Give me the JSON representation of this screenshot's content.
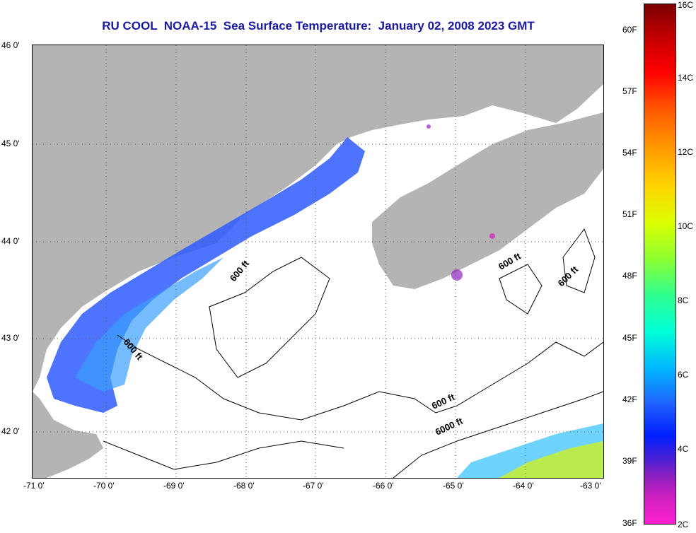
{
  "title": "RU COOL  NOAA-15  Sea Surface Temperature:  January 02, 2008 2023 GMT",
  "latitude_labels": [
    "46 0'",
    "45 0'",
    "44 0'",
    "43 0'",
    "42 0'"
  ],
  "longitude_labels": [
    "-71 0'",
    "-70 0'",
    "-69 0'",
    "-68 0'",
    "-67 0'",
    "-66 0'",
    "-65 0'",
    "-64 0'",
    "-63 0'"
  ],
  "contour_labels": [
    "600 ft",
    "600 ft",
    "600 ft",
    "600 ft",
    "600 ft",
    "6000 ft"
  ],
  "colorbar": {
    "fahrenheit_labels": [
      "60F",
      "57F",
      "54F",
      "51F",
      "48F",
      "45F",
      "42F",
      "39F",
      "36F"
    ],
    "celsius_labels": [
      "16C",
      "14C",
      "12C",
      "10C",
      "8C",
      "6C",
      "4C",
      "2C"
    ]
  },
  "colors": {
    "land": "#b4b4b4",
    "title": "#1a1aa0",
    "cold_sst": "#2f5cff",
    "warm_sst": "#c8f030"
  }
}
